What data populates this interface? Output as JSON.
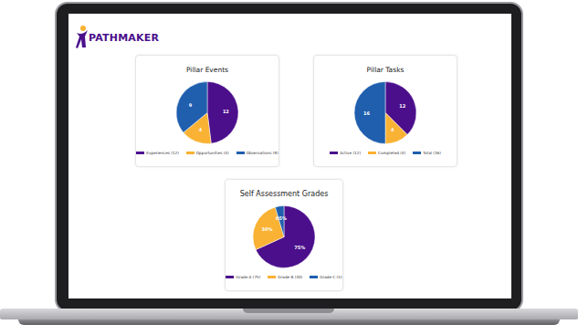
{
  "logo": "PATHMAKER",
  "chart_data": [
    {
      "type": "pie",
      "title": "Pillar Events",
      "categories": [
        "Experiences (12)",
        "Opportunities (4)",
        "Observations (9)"
      ],
      "values": [
        12,
        4,
        9
      ],
      "colors": [
        "#4b0f8c",
        "#f9b233",
        "#1f5fae"
      ],
      "data_labels": true
    },
    {
      "type": "pie",
      "title": "Pillar Tasks",
      "categories": [
        "Active (12)",
        "Completed (4)",
        "Total (16)"
      ],
      "values": [
        12,
        4,
        16
      ],
      "colors": [
        "#4b0f8c",
        "#f9b233",
        "#1f5fae"
      ],
      "data_labels": true
    },
    {
      "type": "pie",
      "title": "Self Assessment Grades",
      "categories": [
        "Grade A (75)",
        "Grade B (30)",
        "Grade C (5)"
      ],
      "values": [
        75,
        30,
        5
      ],
      "value_labels": [
        "75%",
        "30%",
        "05%"
      ],
      "colors": [
        "#4b0f8c",
        "#f9b233",
        "#1f5fae"
      ],
      "data_labels": true
    }
  ]
}
